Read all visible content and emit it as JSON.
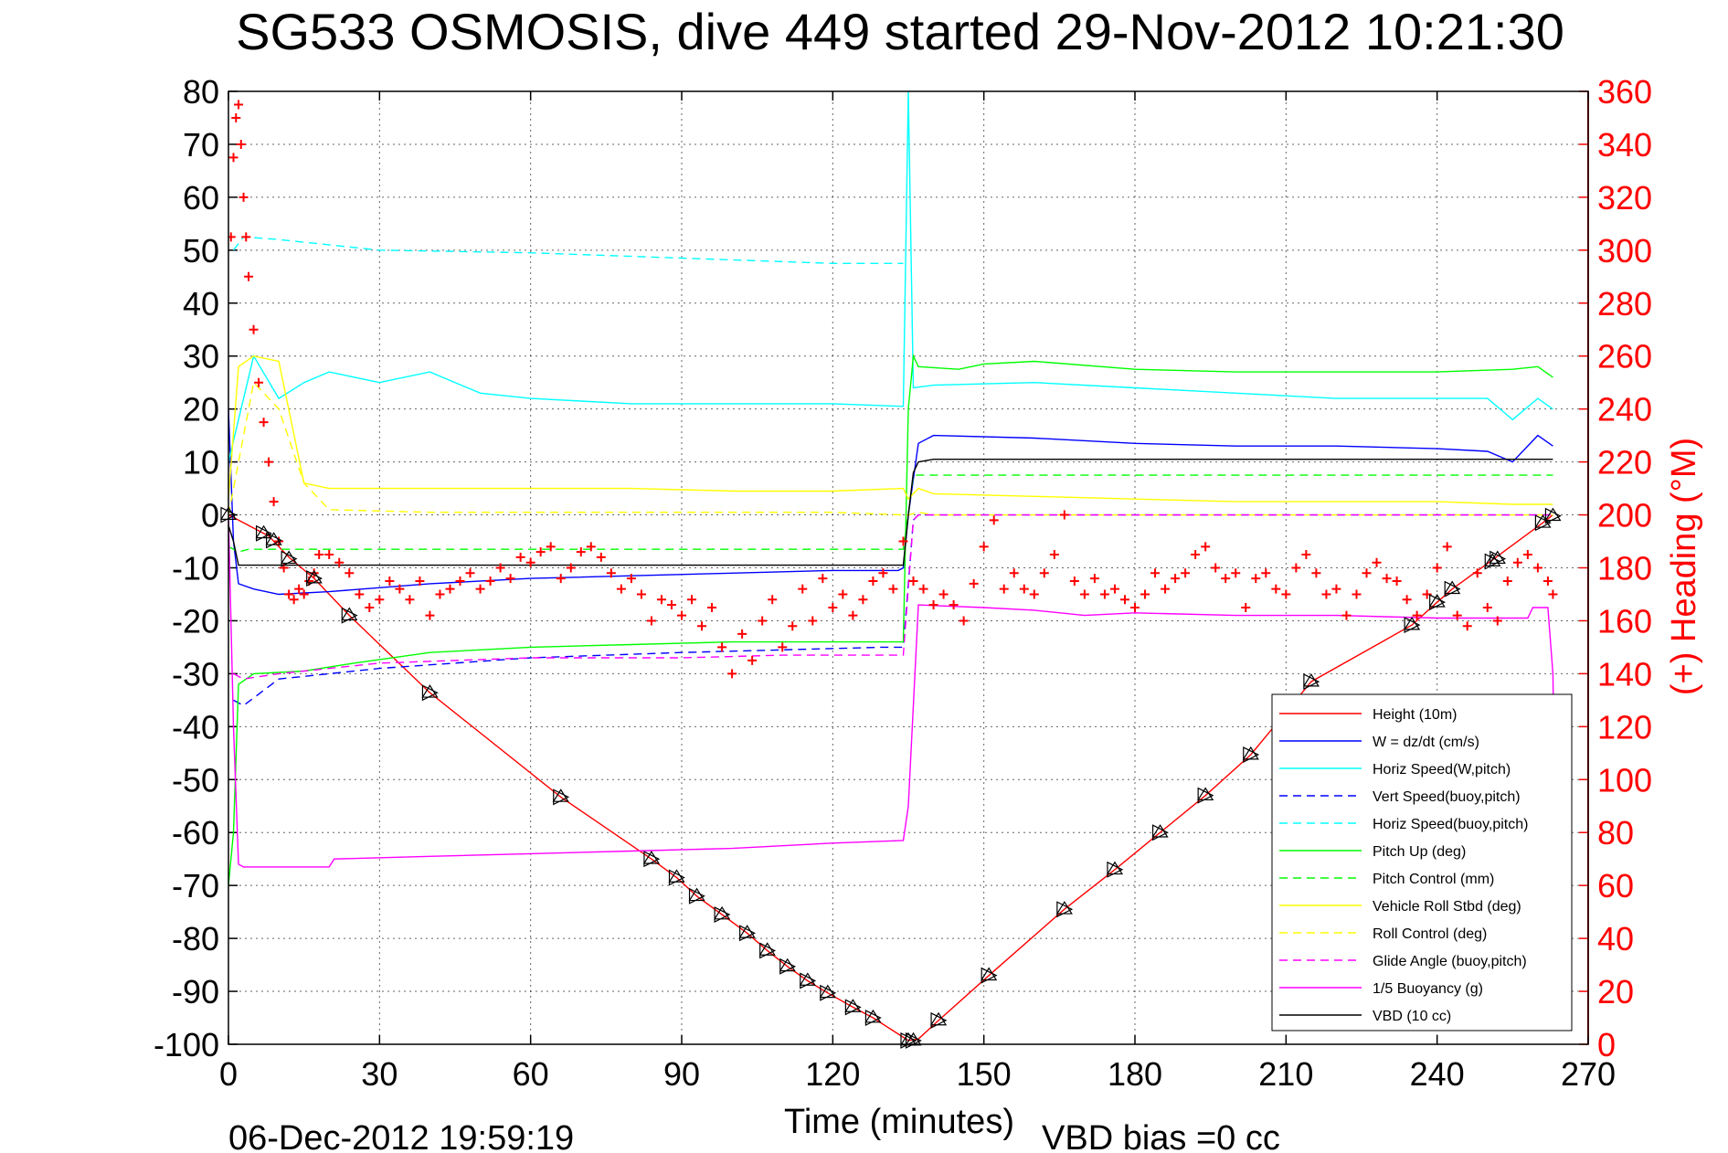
{
  "chart_data": {
    "type": "line",
    "title": "SG533 OSMOSIS, dive 449 started 29-Nov-2012 10:21:30",
    "xlabel": "Time (minutes)",
    "ylabel_right": "(+) Heading (°M)",
    "footer_left": "06-Dec-2012 19:59:19",
    "footer_right": "VBD bias =0 cc",
    "xlim": [
      0,
      270
    ],
    "ylim": [
      -100,
      80
    ],
    "ylim_right": [
      0,
      360
    ],
    "x_ticks": [
      "0",
      "30",
      "60",
      "90",
      "120",
      "150",
      "180",
      "210",
      "240",
      "270"
    ],
    "y_ticks": [
      "80",
      "70",
      "60",
      "50",
      "40",
      "30",
      "20",
      "10",
      "0",
      "-10",
      "-20",
      "-30",
      "-40",
      "-50",
      "-60",
      "-70",
      "-80",
      "-90",
      "-100"
    ],
    "y_ticks_right": [
      "360",
      "340",
      "320",
      "300",
      "280",
      "260",
      "240",
      "220",
      "200",
      "180",
      "160",
      "140",
      "120",
      "100",
      "80",
      "60",
      "40",
      "20",
      "0"
    ],
    "grid": true,
    "legend_position": "bottom-right",
    "series": [
      {
        "name": "Height (10m)",
        "color": "#ff0000",
        "style": "solid",
        "x": [
          0,
          2,
          8,
          12,
          17,
          24,
          40,
          66,
          84,
          89,
          93,
          98,
          103,
          107,
          111,
          115,
          119,
          124,
          128,
          135,
          137,
          141,
          151,
          166,
          176,
          185,
          194,
          203,
          215,
          235,
          240,
          243,
          251,
          261,
          263
        ],
        "y": [
          0,
          -1,
          -4,
          -8,
          -12,
          -19,
          -33.6,
          -53.3,
          -65,
          -68.5,
          -72,
          -75.5,
          -79,
          -82.3,
          -85.3,
          -88,
          -90.3,
          -93,
          -95,
          -99.3,
          -99,
          -95.5,
          -87,
          -74.5,
          -67,
          -60,
          -53,
          -45.3,
          -31.5,
          -20.8,
          -16.5,
          -14,
          -8.5,
          -1.5,
          0
        ]
      },
      {
        "name": "W = dz/dt (cm/s)",
        "color": "#0000ff",
        "style": "solid",
        "x": [
          0,
          1,
          2,
          5,
          10,
          20,
          40,
          60,
          80,
          100,
          120,
          133,
          134,
          135,
          137,
          140,
          160,
          180,
          200,
          220,
          240,
          250,
          255,
          260,
          263
        ],
        "y": [
          20,
          -5,
          -13,
          -14,
          -15,
          -14.5,
          -13,
          -12,
          -11.5,
          -11,
          -10.5,
          -10.5,
          -10,
          0,
          13.5,
          15,
          14.5,
          13.5,
          13,
          13,
          12.5,
          12,
          10,
          15,
          13
        ]
      },
      {
        "name": "Horiz Speed(W,pitch)",
        "color": "#00ffff",
        "style": "solid",
        "x": [
          0,
          5,
          10,
          15,
          20,
          30,
          40,
          50,
          60,
          70,
          80,
          100,
          120,
          134,
          135,
          136,
          140,
          160,
          180,
          200,
          220,
          240,
          250,
          255,
          260,
          263
        ],
        "y": [
          10,
          30,
          22,
          25,
          27,
          25,
          27,
          23,
          22,
          21.5,
          21,
          21,
          21,
          20.5,
          80,
          24,
          24.5,
          25,
          24,
          23,
          22,
          22,
          22,
          18,
          22,
          20
        ]
      },
      {
        "name": "Vert Speed(buoy,pitch)",
        "color": "#0000ff",
        "style": "dashed",
        "x": [
          1,
          3,
          10,
          30,
          60,
          90,
          110,
          130,
          134,
          136,
          137,
          150,
          180,
          200,
          230,
          263
        ],
        "y": [
          -35,
          -36,
          -31,
          -29,
          -27,
          -26,
          -25.5,
          -25,
          -25,
          -1,
          0,
          0,
          0,
          0,
          0,
          0
        ]
      },
      {
        "name": "Horiz Speed(buoy,pitch)",
        "color": "#00ffff",
        "style": "dashed",
        "x": [
          1,
          3,
          10,
          30,
          60,
          90,
          120,
          134
        ],
        "y": [
          50,
          52.5,
          52,
          50,
          49.5,
          48.5,
          47.5,
          47.5
        ]
      },
      {
        "name": "Pitch Up (deg)",
        "color": "#00ff00",
        "style": "solid",
        "x": [
          0,
          1,
          2,
          5,
          15,
          25,
          40,
          60,
          80,
          100,
          120,
          134,
          135,
          136,
          137,
          145,
          150,
          160,
          180,
          200,
          220,
          240,
          255,
          260,
          263
        ],
        "y": [
          -70,
          -60,
          -32,
          -30,
          -29.5,
          -28,
          -26,
          -25,
          -24.5,
          -24,
          -24,
          -24,
          20,
          30,
          28,
          27.5,
          28.5,
          29,
          27.5,
          27,
          27,
          27,
          27.5,
          28,
          26
        ]
      },
      {
        "name": "Pitch Control (mm)",
        "color": "#00ff00",
        "style": "dashed",
        "x": [
          0,
          2,
          4,
          134,
          135,
          136,
          263
        ],
        "y": [
          -6,
          -7,
          -6.5,
          -6.5,
          0,
          7.5,
          7.5
        ]
      },
      {
        "name": "Vehicle Roll Stbd (deg)",
        "color": "#ffff00",
        "style": "solid",
        "x": [
          0,
          2,
          5,
          10,
          15,
          20,
          40,
          60,
          80,
          100,
          120,
          134,
          135,
          137,
          140,
          160,
          180,
          200,
          220,
          240,
          255,
          260,
          263
        ],
        "y": [
          3,
          28,
          30,
          29,
          6,
          5,
          5,
          5,
          5,
          4.5,
          4.5,
          5,
          3,
          5,
          4,
          3.5,
          3,
          2.5,
          2.5,
          2.5,
          2,
          2,
          2
        ]
      },
      {
        "name": "Roll Control (deg)",
        "color": "#ffff00",
        "style": "dashed",
        "x": [
          0,
          5,
          10,
          15,
          20,
          40,
          60,
          80,
          100,
          120,
          134,
          135,
          137,
          140,
          160,
          180,
          200,
          220,
          240,
          263
        ],
        "y": [
          0,
          25,
          20,
          6,
          1,
          0.5,
          0.5,
          0.5,
          0.5,
          0.5,
          0,
          0,
          0.5,
          0,
          0,
          0,
          0,
          0,
          0,
          0
        ]
      },
      {
        "name": "Glide Angle (buoy,pitch)",
        "color": "#ff00ff",
        "style": "dashed",
        "x": [
          1,
          3,
          10,
          20,
          30,
          60,
          90,
          110,
          134,
          136,
          137,
          180,
          263
        ],
        "y": [
          -30,
          -31,
          -30,
          -29,
          -28,
          -27,
          -27,
          -26.5,
          -26.5,
          -1,
          0,
          0,
          0
        ]
      },
      {
        "name": "1/5 Buoyancy (g)",
        "color": "#ff00ff",
        "style": "solid",
        "x": [
          0,
          1,
          2,
          3,
          20,
          21,
          40,
          60,
          80,
          100,
          120,
          134,
          135,
          137,
          150,
          160,
          170,
          180,
          200,
          220,
          240,
          258,
          259,
          262,
          263,
          264
        ],
        "y": [
          0,
          -40,
          -66,
          -66.5,
          -66.5,
          -65,
          -64.5,
          -64,
          -63.5,
          -63,
          -62,
          -61.5,
          -55,
          -17,
          -17.5,
          -18,
          -19,
          -18.5,
          -19,
          -19,
          -19.5,
          -19.5,
          -17.5,
          -17.5,
          -30,
          -95
        ]
      },
      {
        "name": "VBD (10 cc)",
        "color": "#000000",
        "style": "solid",
        "x": [
          0,
          1,
          2,
          134,
          135,
          136,
          137,
          140,
          263
        ],
        "y": [
          -2,
          -5,
          -9.5,
          -9.5,
          0,
          8,
          10,
          10.5,
          10.5
        ]
      }
    ],
    "heading_series": {
      "name": "Heading",
      "axis": "right",
      "marker": "+",
      "color": "#ff0000",
      "x": [
        0.5,
        1,
        1.5,
        2,
        2.5,
        3,
        3.5,
        4,
        5,
        6,
        7,
        8,
        9,
        10,
        11,
        12,
        13,
        14,
        15,
        16,
        17,
        18,
        20,
        22,
        24,
        26,
        28,
        30,
        32,
        34,
        36,
        38,
        40,
        42,
        44,
        46,
        48,
        50,
        52,
        54,
        56,
        58,
        60,
        62,
        64,
        66,
        68,
        70,
        72,
        74,
        76,
        78,
        80,
        82,
        84,
        86,
        88,
        90,
        92,
        94,
        96,
        98,
        100,
        102,
        104,
        106,
        108,
        110,
        112,
        114,
        116,
        118,
        120,
        122,
        124,
        126,
        128,
        130,
        132,
        134,
        136,
        138,
        140,
        142,
        144,
        146,
        148,
        150,
        152,
        154,
        156,
        158,
        160,
        162,
        164,
        166,
        168,
        170,
        172,
        174,
        176,
        178,
        180,
        182,
        184,
        186,
        188,
        190,
        192,
        194,
        196,
        198,
        200,
        202,
        204,
        206,
        208,
        210,
        212,
        214,
        216,
        218,
        220,
        222,
        224,
        226,
        228,
        230,
        232,
        234,
        236,
        238,
        240,
        242,
        244,
        246,
        248,
        250,
        252,
        254,
        256,
        258,
        260,
        262,
        263
      ],
      "y": [
        305,
        335,
        350,
        355,
        340,
        320,
        305,
        290,
        270,
        250,
        235,
        220,
        205,
        190,
        180,
        170,
        168,
        172,
        170,
        175,
        178,
        185,
        185,
        182,
        178,
        170,
        165,
        168,
        175,
        172,
        168,
        175,
        162,
        170,
        172,
        175,
        178,
        172,
        175,
        180,
        176,
        184,
        182,
        186,
        188,
        176,
        180,
        186,
        188,
        184,
        178,
        172,
        176,
        170,
        160,
        168,
        166,
        162,
        168,
        158,
        165,
        150,
        140,
        155,
        145,
        160,
        168,
        150,
        158,
        172,
        160,
        176,
        165,
        170,
        162,
        168,
        175,
        178,
        172,
        190,
        175,
        172,
        166,
        170,
        166,
        160,
        174,
        188,
        198,
        172,
        178,
        172,
        170,
        178,
        185,
        200,
        175,
        170,
        176,
        170,
        172,
        168,
        165,
        170,
        178,
        172,
        176,
        178,
        185,
        188,
        180,
        176,
        178,
        165,
        176,
        178,
        172,
        170,
        180,
        185,
        178,
        170,
        172,
        162,
        170,
        178,
        182,
        176,
        175,
        168,
        162,
        170,
        180,
        188,
        162,
        158,
        178,
        165,
        160,
        175,
        182,
        185,
        180,
        175,
        170
      ]
    },
    "depth_markers": {
      "x": [
        0,
        7,
        9,
        12,
        17,
        24,
        40,
        66,
        84,
        89,
        93,
        98,
        103,
        107,
        111,
        115,
        119,
        124,
        128,
        135,
        136,
        141,
        151,
        166,
        176,
        185,
        194,
        203,
        215,
        235,
        240,
        243,
        251,
        252,
        261,
        263
      ],
      "y": [
        0,
        -3.5,
        -4.8,
        -8.3,
        -12,
        -19,
        -33.6,
        -53.3,
        -65,
        -68.5,
        -72,
        -75.5,
        -79,
        -82.3,
        -85.3,
        -88,
        -90.3,
        -93,
        -95,
        -99.3,
        -99.3,
        -95.5,
        -87,
        -74.5,
        -67,
        -60,
        -53,
        -45.3,
        -31.5,
        -20.8,
        -16.5,
        -14,
        -8.8,
        -8.3,
        -1.5,
        -0.2
      ]
    }
  }
}
